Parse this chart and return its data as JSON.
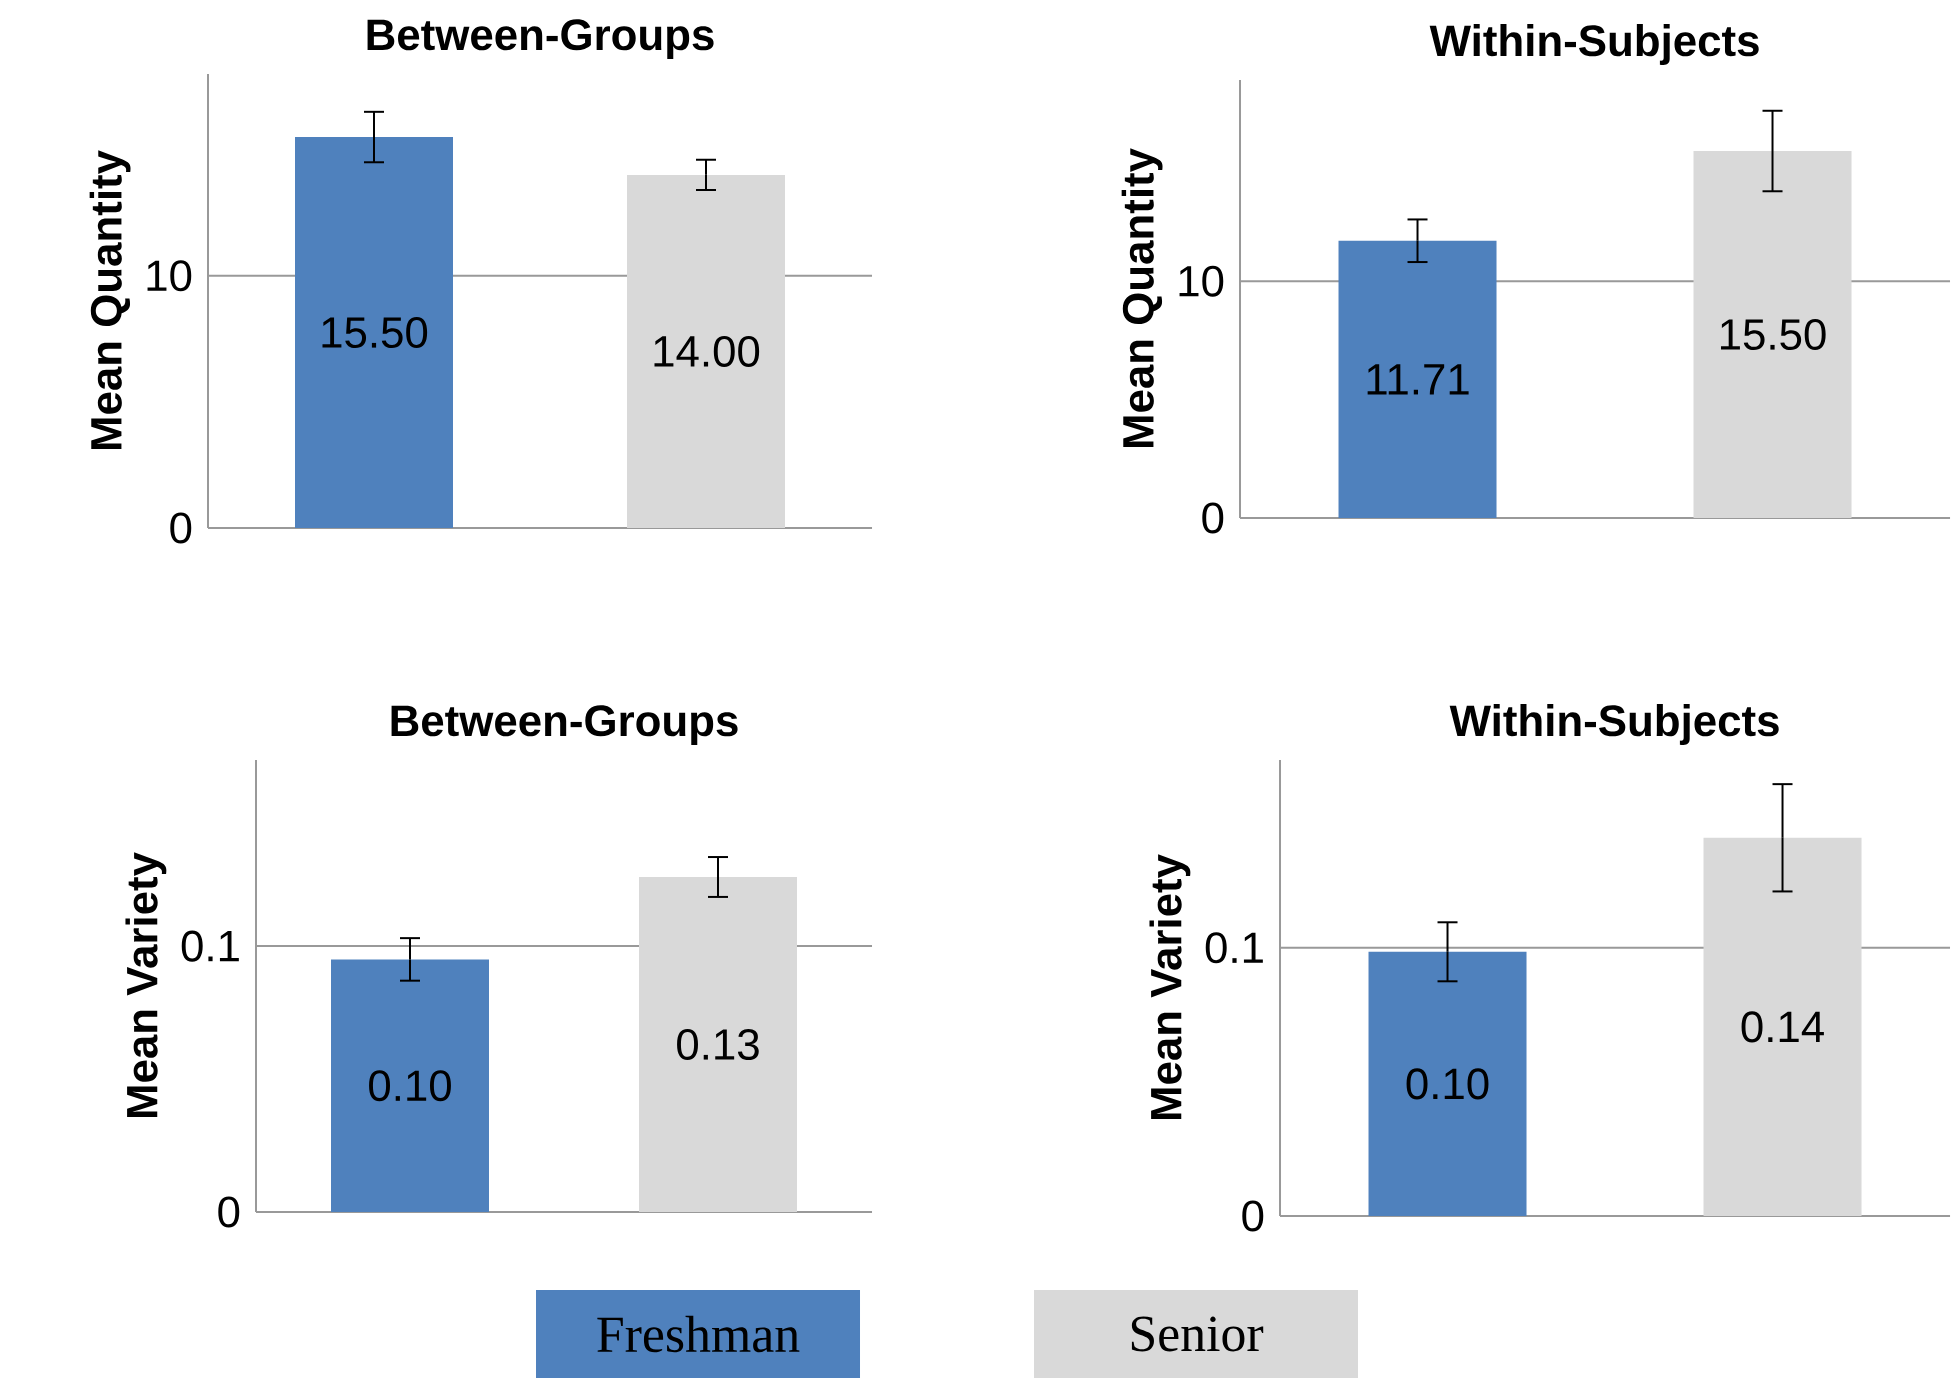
{
  "chart_data": [
    {
      "type": "bar",
      "title": "Between-Groups",
      "ylabel": "Mean Quantity",
      "categories": [
        null
      ],
      "ylim": [
        0,
        18
      ],
      "yticks": [
        0,
        10
      ],
      "grid": "y",
      "series": [
        {
          "color": "#4f81bd",
          "values": [
            15.5
          ],
          "errors": [
            1.0
          ],
          "value_labels": [
            "15.50"
          ]
        },
        {
          "color": "#d9d9d9",
          "values": [
            14.0
          ],
          "errors": [
            0.6
          ],
          "value_labels": [
            "14.00"
          ]
        }
      ]
    },
    {
      "type": "bar",
      "title": "Within-Subjects",
      "ylabel": "Mean Quantity",
      "categories": [
        null
      ],
      "ylim": [
        0,
        18.5
      ],
      "yticks": [
        0,
        10
      ],
      "grid": "y",
      "series": [
        {
          "color": "#4f81bd",
          "values": [
            11.71
          ],
          "errors": [
            0.9
          ],
          "value_labels": [
            "11.71"
          ]
        },
        {
          "color": "#d9d9d9",
          "values": [
            15.5
          ],
          "errors": [
            1.7
          ],
          "value_labels": [
            "15.50"
          ]
        }
      ]
    },
    {
      "type": "bar",
      "title": "Between-Groups",
      "ylabel": "Mean Variety",
      "categories": [
        null
      ],
      "ylim": [
        0,
        0.17
      ],
      "yticks": [
        0,
        0.1
      ],
      "grid": "y",
      "series": [
        {
          "color": "#4f81bd",
          "values": [
            0.095
          ],
          "errors": [
            0.008
          ],
          "value_labels": [
            "0.10"
          ]
        },
        {
          "color": "#d9d9d9",
          "values": [
            0.126
          ],
          "errors": [
            0.0075
          ],
          "value_labels": [
            "0.13"
          ]
        }
      ]
    },
    {
      "type": "bar",
      "title": "Within-Subjects",
      "ylabel": "Mean Variety",
      "categories": [
        null
      ],
      "ylim": [
        0,
        0.17
      ],
      "yticks": [
        0,
        0.1
      ],
      "grid": "y",
      "legend": "bottom",
      "series": [
        {
          "name": "Freshman",
          "color": "#4f81bd",
          "values": [
            0.0985
          ],
          "errors": [
            0.011
          ],
          "value_labels": [
            "0.10"
          ]
        },
        {
          "name": "Senior",
          "color": "#d9d9d9",
          "values": [
            0.141
          ],
          "errors": [
            0.02
          ],
          "value_labels": [
            "0.14"
          ]
        }
      ]
    }
  ]
}
